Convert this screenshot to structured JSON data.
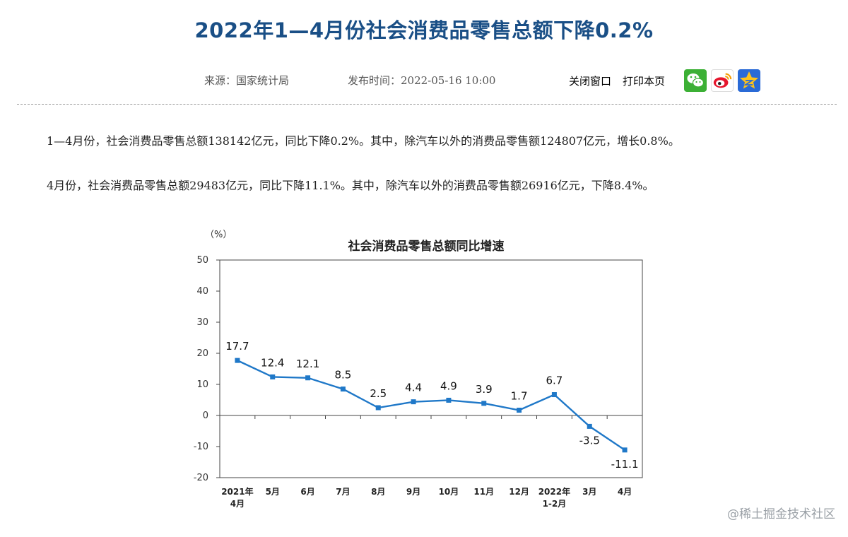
{
  "article": {
    "title": "2022年1—4月份社会消费品零售总额下降0.2%",
    "source": "来源：国家统计局",
    "published": "发布时间：2022-05-16  10:00",
    "close_label": "关闭窗口",
    "print_label": "打印本页",
    "share_icons": [
      "wechat-icon",
      "weibo-icon",
      "qzone-icon"
    ],
    "paragraph_1": "1—4月份，社会消费品零售总额138142亿元，同比下降0.2%。其中，除汽车以外的消费品零售额124807亿元，增长0.8%。",
    "paragraph_2": "4月份，社会消费品零售总额29483亿元，同比下降11.1%。其中，除汽车以外的消费品零售额26916亿元，下降8.4%。"
  },
  "watermark": "@稀土掘金技术社区",
  "colors": {
    "title": "#1a4f86",
    "series": "#1f78c8"
  },
  "chart_data": {
    "type": "line",
    "title": "社会消费品零售总额同比增速",
    "unit_label": "（%）",
    "categories": [
      [
        "2021年",
        "4月"
      ],
      [
        "5月"
      ],
      [
        "6月"
      ],
      [
        "7月"
      ],
      [
        "8月"
      ],
      [
        "9月"
      ],
      [
        "10月"
      ],
      [
        "11月"
      ],
      [
        "12月"
      ],
      [
        "2022年",
        "1-2月"
      ],
      [
        "3月"
      ],
      [
        "4月"
      ]
    ],
    "values": [
      17.7,
      12.4,
      12.1,
      8.5,
      2.5,
      4.4,
      4.9,
      3.9,
      1.7,
      6.7,
      -3.5,
      -11.1
    ],
    "value_labels": [
      "17.7",
      "12.4",
      "12.1",
      "8.5",
      "2.5",
      "4.4",
      "4.9",
      "3.9",
      "1.7",
      "6.7",
      "-3.5",
      "-11.1"
    ],
    "yticks": [
      "50",
      "40",
      "30",
      "20",
      "10",
      "0",
      "-10",
      "-20"
    ],
    "ylim": [
      -20,
      50
    ],
    "grid": false,
    "legend": "none"
  }
}
